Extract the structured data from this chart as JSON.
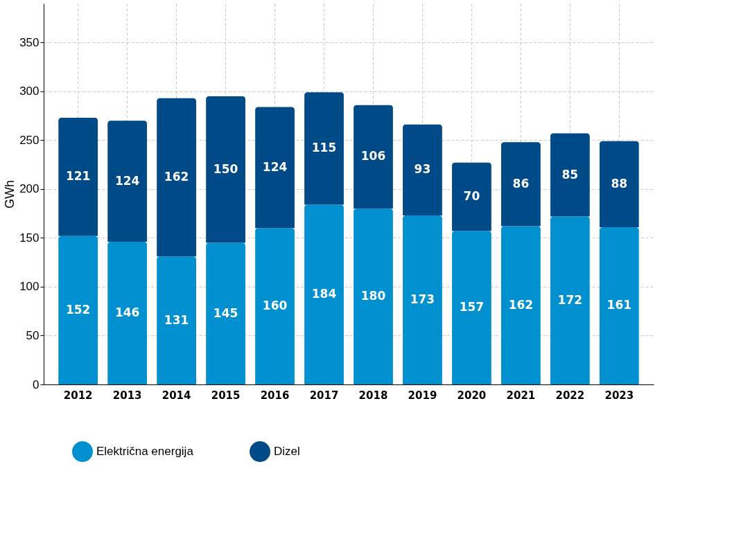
{
  "chart_data": {
    "type": "bar",
    "ylabel": "GWh",
    "stacked": true,
    "data_labels": true,
    "grid": true,
    "legend": "bottom",
    "categories": [
      "2012",
      "2013",
      "2014",
      "2015",
      "2016",
      "2017",
      "2018",
      "2019",
      "2020",
      "2021",
      "2022",
      "2023"
    ],
    "series": [
      {
        "name": "Električna energija",
        "color": "#0090d0",
        "values": [
          152,
          146,
          131,
          145,
          160,
          184,
          180,
          173,
          157,
          162,
          172,
          161
        ]
      },
      {
        "name": "Dizel",
        "color": "#004a87",
        "values": [
          121,
          124,
          162,
          150,
          124,
          115,
          106,
          93,
          70,
          86,
          85,
          88
        ]
      }
    ],
    "ylim": [
      0,
      390
    ],
    "yticks": [
      0,
      50,
      100,
      150,
      200,
      250,
      300,
      350
    ]
  }
}
